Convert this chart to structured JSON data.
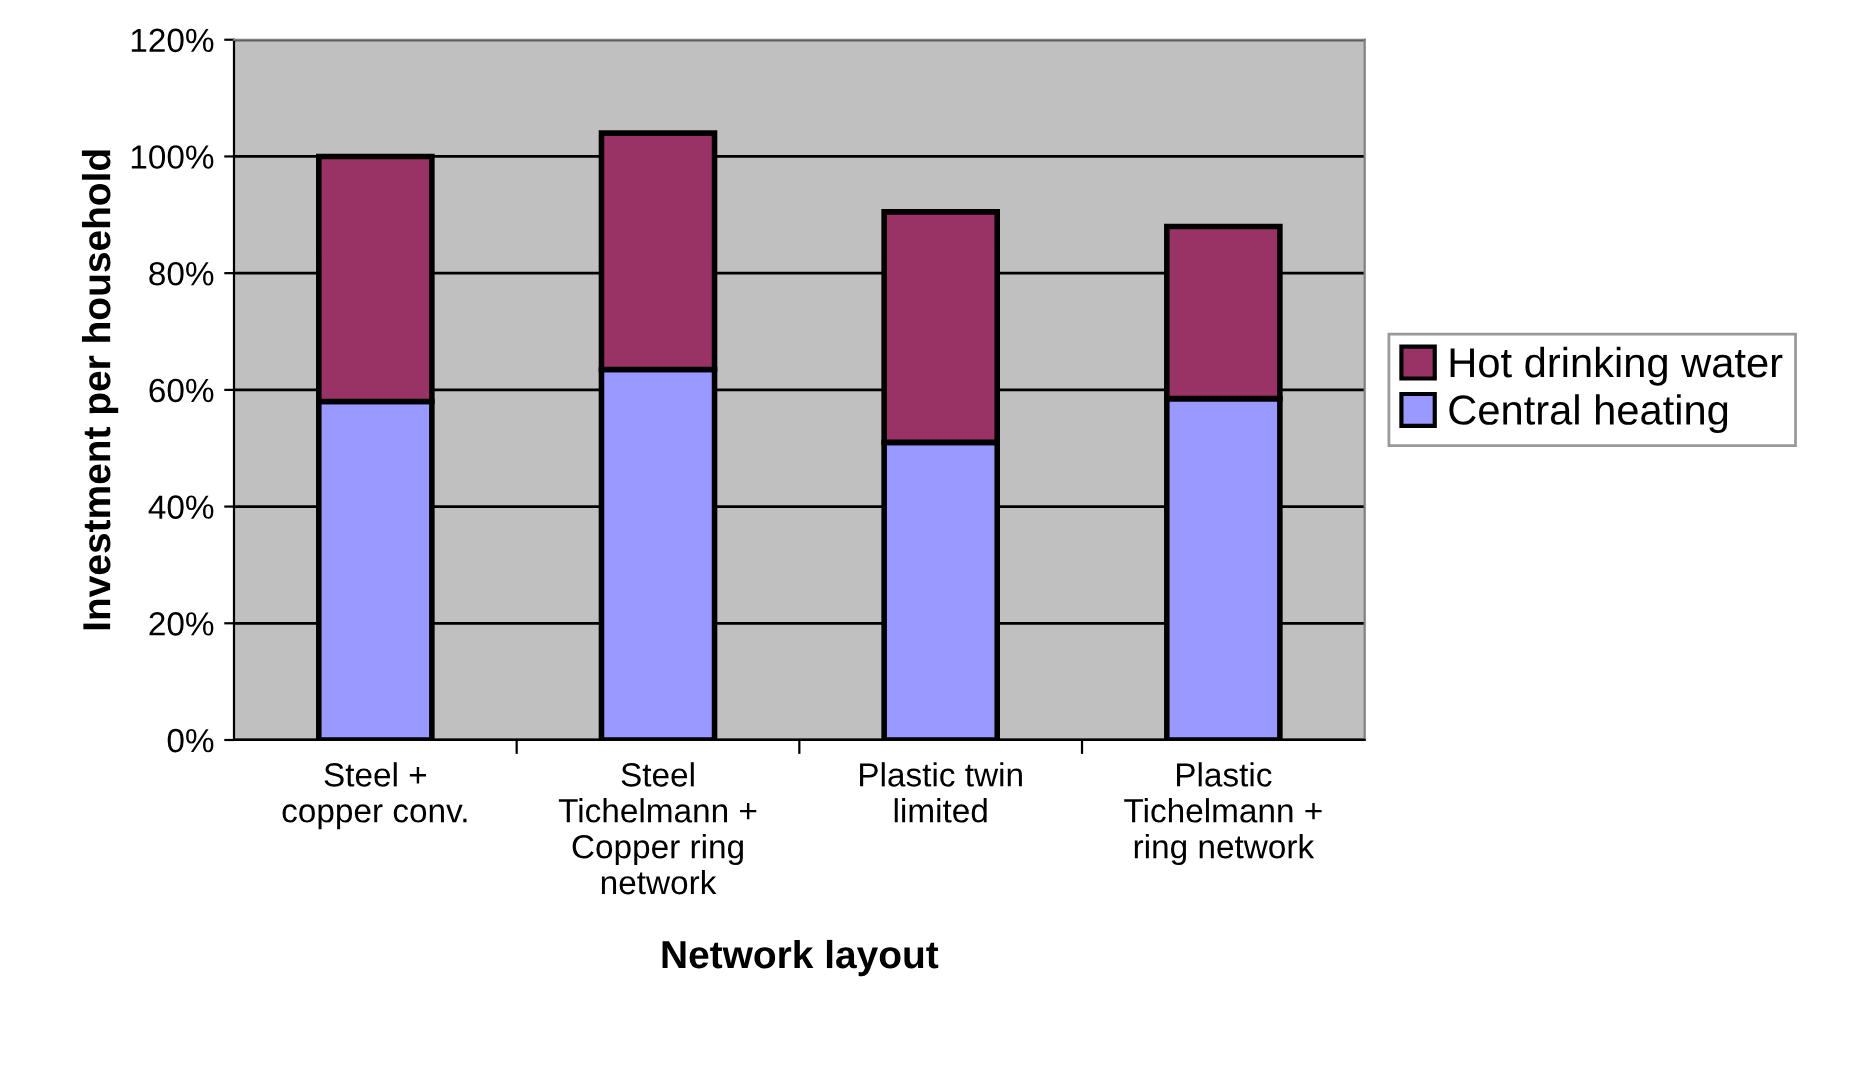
{
  "chart_data": {
    "type": "bar",
    "stacked": true,
    "xlabel": "Network layout",
    "ylabel": "Investment per household",
    "categories": [
      "Steel +\ncopper conv.",
      "Steel\nTichelmann +\nCopper ring\nnetwork",
      "Plastic twin\nlimited",
      "Plastic\nTichelmann +\nring network"
    ],
    "series": [
      {
        "name": "Central heating",
        "color": "#9999ff",
        "values": [
          58,
          63.5,
          51,
          58.5
        ]
      },
      {
        "name": "Hot drinking water",
        "color": "#993366",
        "values": [
          42,
          40.5,
          39.5,
          29.5
        ]
      }
    ],
    "ylim": [
      0,
      120
    ],
    "yticks": [
      {
        "value": 0,
        "label": "0%"
      },
      {
        "value": 20,
        "label": "20%"
      },
      {
        "value": 40,
        "label": "40%"
      },
      {
        "value": 60,
        "label": "60%"
      },
      {
        "value": 80,
        "label": "80%"
      },
      {
        "value": 100,
        "label": "100%"
      },
      {
        "value": 120,
        "label": "120%"
      }
    ],
    "grid": "y",
    "legend": "right"
  }
}
